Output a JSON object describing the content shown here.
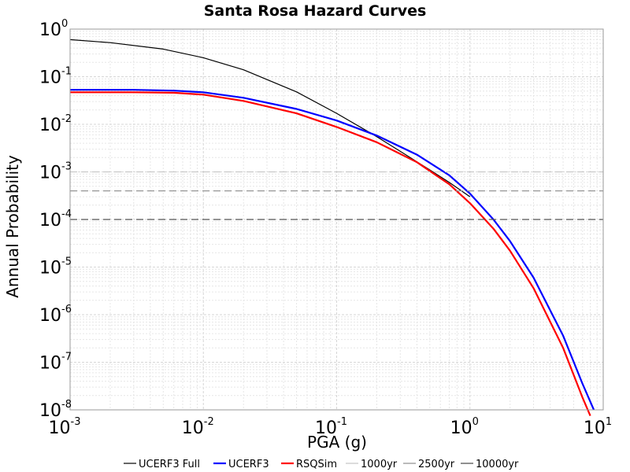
{
  "chart_data": {
    "type": "line",
    "title": "Santa Rosa Hazard Curves",
    "xlabel": "PGA (g)",
    "ylabel": "Annual Probability",
    "x_scale": "log",
    "y_scale": "log",
    "xlim": [
      0.001,
      10
    ],
    "ylim": [
      1e-08,
      1
    ],
    "grid": true,
    "legend_position": "bottom",
    "x_ticks": [
      {
        "value": 0.001,
        "base": "10",
        "exp": "-3"
      },
      {
        "value": 0.01,
        "base": "10",
        "exp": "-2"
      },
      {
        "value": 0.1,
        "base": "10",
        "exp": "-1"
      },
      {
        "value": 1,
        "base": "10",
        "exp": "0"
      },
      {
        "value": 10,
        "base": "10",
        "exp": "1"
      }
    ],
    "y_ticks": [
      {
        "value": 1,
        "base": "10",
        "exp": "0"
      },
      {
        "value": 0.1,
        "base": "10",
        "exp": "-1"
      },
      {
        "value": 0.01,
        "base": "10",
        "exp": "-2"
      },
      {
        "value": 0.001,
        "base": "10",
        "exp": "-3"
      },
      {
        "value": 0.0001,
        "base": "10",
        "exp": "-4"
      },
      {
        "value": 1e-05,
        "base": "10",
        "exp": "-5"
      },
      {
        "value": 1e-06,
        "base": "10",
        "exp": "-6"
      },
      {
        "value": 1e-07,
        "base": "10",
        "exp": "-7"
      },
      {
        "value": 1e-08,
        "base": "10",
        "exp": "-8"
      }
    ],
    "series": [
      {
        "name": "UCERF3 Full",
        "color": "#000000",
        "style": "solid",
        "x": [
          0.001,
          0.002,
          0.005,
          0.01,
          0.02,
          0.05,
          0.1,
          0.2,
          0.3,
          0.5,
          0.7,
          1.0
        ],
        "y": [
          0.6,
          0.52,
          0.38,
          0.25,
          0.14,
          0.048,
          0.017,
          0.0055,
          0.0027,
          0.0011,
          0.0006,
          0.0003
        ]
      },
      {
        "name": "UCERF3",
        "color": "#0000ff",
        "style": "solid",
        "x": [
          0.001,
          0.003,
          0.006,
          0.01,
          0.02,
          0.05,
          0.1,
          0.2,
          0.4,
          0.7,
          1.0,
          1.5,
          2.0,
          3.0,
          5.0,
          7.0,
          8.5
        ],
        "y": [
          0.053,
          0.053,
          0.051,
          0.047,
          0.036,
          0.021,
          0.012,
          0.0058,
          0.0023,
          0.00085,
          0.00035,
          0.0001,
          3.5e-05,
          6e-06,
          3.6e-07,
          3.5e-08,
          1e-08
        ]
      },
      {
        "name": "RSQSim",
        "color": "#ff0000",
        "style": "solid",
        "x": [
          0.001,
          0.003,
          0.006,
          0.01,
          0.02,
          0.05,
          0.1,
          0.2,
          0.4,
          0.7,
          1.0,
          1.5,
          2.0,
          3.0,
          5.0,
          7.0,
          8.0
        ],
        "y": [
          0.047,
          0.047,
          0.046,
          0.042,
          0.031,
          0.017,
          0.0088,
          0.0042,
          0.0016,
          0.00055,
          0.00022,
          6.4e-05,
          2.2e-05,
          3.6e-06,
          2e-07,
          1.8e-08,
          7.5e-09
        ]
      },
      {
        "name": "1000yr",
        "color": "#c8c8c8",
        "style": "dashed",
        "x": [
          0.001,
          10
        ],
        "y": [
          0.001,
          0.001
        ]
      },
      {
        "name": "2500yr",
        "color": "#969696",
        "style": "dashed",
        "x": [
          0.001,
          10
        ],
        "y": [
          0.0004,
          0.0004
        ]
      },
      {
        "name": "10000yr",
        "color": "#555555",
        "style": "dashed",
        "x": [
          0.001,
          10
        ],
        "y": [
          0.0001,
          0.0001
        ]
      }
    ]
  }
}
